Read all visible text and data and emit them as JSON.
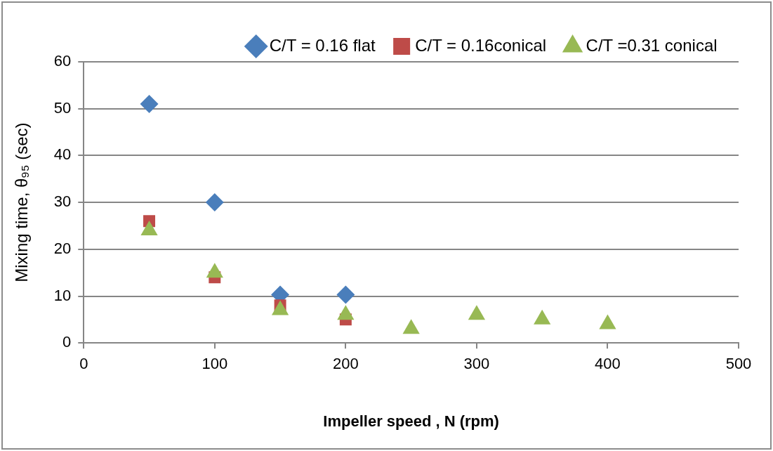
{
  "chart_data": {
    "type": "scatter",
    "xlabel": "Impeller speed , N (rpm)",
    "ylabel": "Mixing time, θ₉₅ (sec)",
    "xlim": [
      0,
      500
    ],
    "xticks": [
      0,
      100,
      200,
      300,
      400,
      500
    ],
    "ylim": [
      0,
      60
    ],
    "yticks": [
      0,
      10,
      20,
      30,
      40,
      50,
      60
    ],
    "grid": "y",
    "legend": "top right",
    "series": [
      {
        "name": "C/T = 0.16 flat",
        "color": "#4a7ebb",
        "marker": "diamond",
        "x": [
          50,
          100,
          150,
          200
        ],
        "values": [
          51,
          30,
          10.3,
          10.3
        ]
      },
      {
        "name": "C/T = 0.16conical",
        "color": "#be4b48",
        "marker": "square",
        "x": [
          50,
          100,
          150,
          200
        ],
        "values": [
          26,
          14,
          8,
          5
        ]
      },
      {
        "name": "C/T =0.31 conical",
        "color": "#98b954",
        "marker": "triangle",
        "x": [
          50,
          100,
          150,
          200,
          250,
          300,
          350,
          400
        ],
        "values": [
          24,
          15,
          7,
          6,
          3,
          6,
          5,
          4
        ]
      }
    ]
  }
}
